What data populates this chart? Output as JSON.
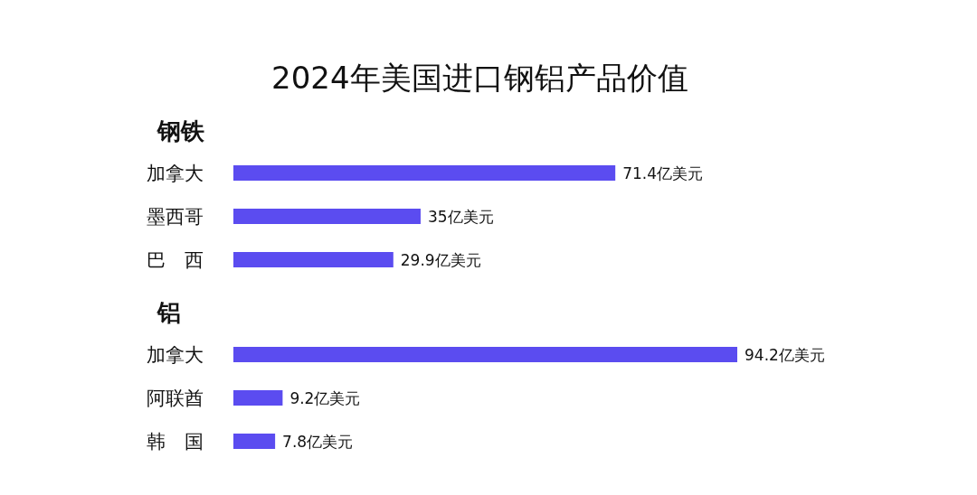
{
  "chart_data": [
    {
      "type": "bar",
      "orientation": "horizontal",
      "title": "2024年美国进口钢铝产品价值",
      "subtitle": "钢铁",
      "categories": [
        "加拿大",
        "墨西哥",
        "巴　西"
      ],
      "values": [
        71.4,
        35,
        29.9
      ],
      "value_labels": [
        "71.4亿美元",
        "35亿美元",
        "29.9亿美元"
      ],
      "color": "#5b4cf0"
    },
    {
      "type": "bar",
      "orientation": "horizontal",
      "title": "铝",
      "categories": [
        "加拿大",
        "阿联酋",
        "韩　国"
      ],
      "values": [
        94.2,
        9.2,
        7.8
      ],
      "value_labels": [
        "94.2亿美元",
        "9.2亿美元",
        "7.8亿美元"
      ],
      "color": "#5b4cf0"
    }
  ]
}
